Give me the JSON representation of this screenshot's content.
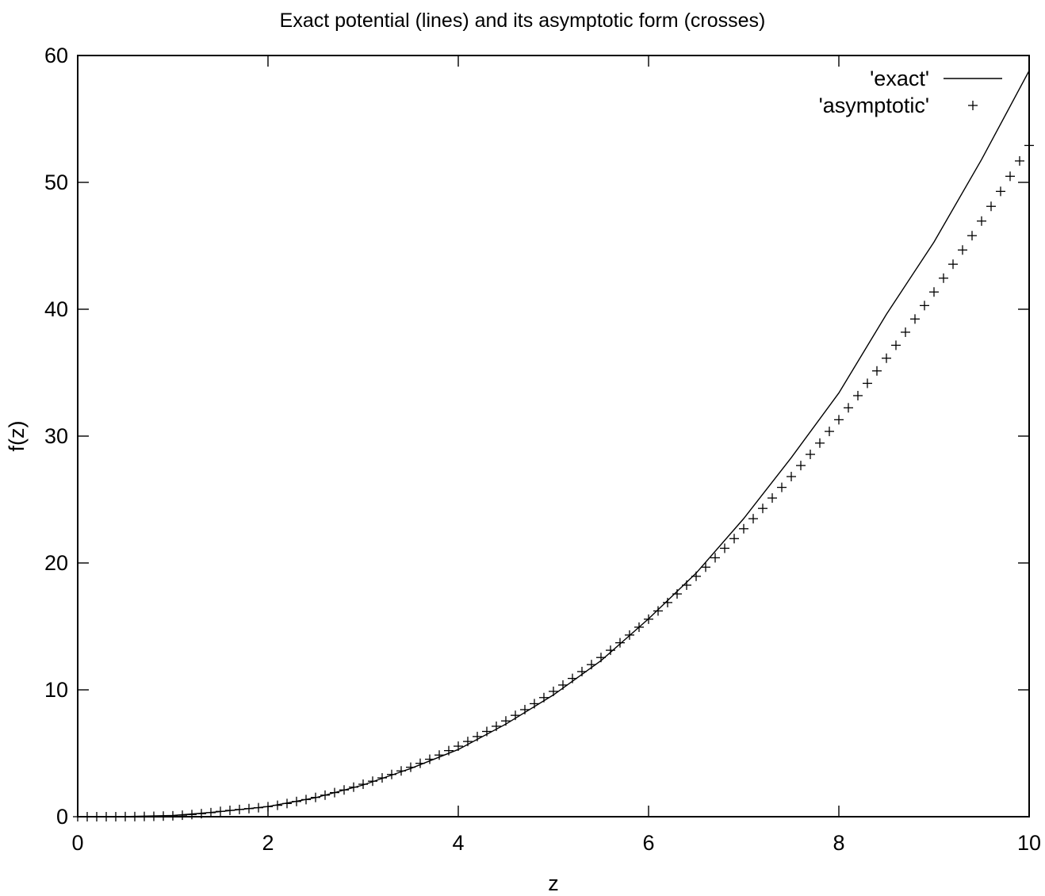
{
  "chart_data": {
    "type": "line",
    "title": "Exact potential (lines) and its asymptotic form (crosses)",
    "xlabel": "z",
    "ylabel": "f(z)",
    "xlim": [
      0,
      10
    ],
    "ylim": [
      0,
      60
    ],
    "xticks": [
      "0",
      "2",
      "4",
      "6",
      "8",
      "10"
    ],
    "yticks": [
      "0",
      "10",
      "20",
      "30",
      "40",
      "50",
      "60"
    ],
    "grid": false,
    "legend_position": "top-right",
    "series": [
      {
        "name": "'exact'",
        "style": "line",
        "color": "#000000",
        "x": [
          0,
          0.5,
          1.0,
          1.5,
          2.0,
          2.5,
          3.0,
          3.5,
          4.0,
          4.5,
          5.0,
          5.5,
          6.0,
          6.5,
          7.0,
          7.5,
          8.0,
          8.5,
          9.0,
          9.5,
          10.0
        ],
        "y": [
          0,
          0.01,
          0.1,
          0.4,
          0.8,
          1.5,
          2.5,
          3.8,
          5.3,
          7.3,
          9.6,
          12.3,
          15.6,
          19.2,
          23.5,
          28.3,
          33.4,
          39.6,
          45.3,
          51.8,
          58.8
        ]
      },
      {
        "name": "'asymptotic'",
        "style": "markers",
        "marker": "plus",
        "color": "#000000",
        "x": [
          0.0,
          0.1,
          0.2,
          0.3,
          0.4,
          0.5,
          0.6,
          0.7,
          0.8,
          0.9,
          1.0,
          1.1,
          1.2,
          1.3,
          1.4,
          1.5,
          1.6,
          1.7,
          1.8,
          1.9,
          2.0,
          2.1,
          2.2,
          2.3,
          2.4,
          2.5,
          2.6,
          2.7,
          2.8,
          2.9,
          3.0,
          3.1,
          3.2,
          3.3,
          3.4,
          3.5,
          3.6,
          3.7,
          3.8,
          3.9,
          4.0,
          4.1,
          4.2,
          4.3,
          4.4,
          4.5,
          4.6,
          4.7,
          4.8,
          4.9,
          5.0,
          5.1,
          5.2,
          5.3,
          5.4,
          5.5,
          5.6,
          5.7,
          5.8,
          5.9,
          6.0,
          6.1,
          6.2,
          6.3,
          6.4,
          6.5,
          6.6,
          6.7,
          6.8,
          6.9,
          7.0,
          7.1,
          7.2,
          7.3,
          7.4,
          7.5,
          7.6,
          7.7,
          7.8,
          7.9,
          8.0,
          8.1,
          8.2,
          8.3,
          8.4,
          8.5,
          8.6,
          8.7,
          8.8,
          8.9,
          9.0,
          9.1,
          9.2,
          9.3,
          9.4,
          9.5,
          9.6,
          9.7,
          9.8,
          9.9,
          10.0
        ],
        "y": [
          0.0,
          0.0,
          0.0,
          0.0,
          0.0,
          0.01,
          0.01,
          0.02,
          0.03,
          0.05,
          0.07,
          0.12,
          0.17,
          0.24,
          0.32,
          0.42,
          0.5,
          0.57,
          0.64,
          0.71,
          0.79,
          0.9,
          1.04,
          1.2,
          1.35,
          1.52,
          1.7,
          1.9,
          2.11,
          2.33,
          2.56,
          2.8,
          3.06,
          3.33,
          3.61,
          3.9,
          4.21,
          4.53,
          4.86,
          5.21,
          5.56,
          5.93,
          6.32,
          6.72,
          7.13,
          7.55,
          7.99,
          8.44,
          8.91,
          9.39,
          9.88,
          10.38,
          10.9,
          11.44,
          11.99,
          12.55,
          13.12,
          13.71,
          14.32,
          14.94,
          15.57,
          16.22,
          16.88,
          17.56,
          18.25,
          18.95,
          19.67,
          20.41,
          21.16,
          21.92,
          22.7,
          23.49,
          24.3,
          25.12,
          25.96,
          26.81,
          27.68,
          28.56,
          29.45,
          30.37,
          31.29,
          32.23,
          33.19,
          34.16,
          35.14,
          36.14,
          37.16,
          38.19,
          39.23,
          40.29,
          41.36,
          42.45,
          43.55,
          44.67,
          45.8,
          46.95,
          48.11,
          49.29,
          50.48,
          51.69,
          52.91
        ]
      }
    ]
  }
}
